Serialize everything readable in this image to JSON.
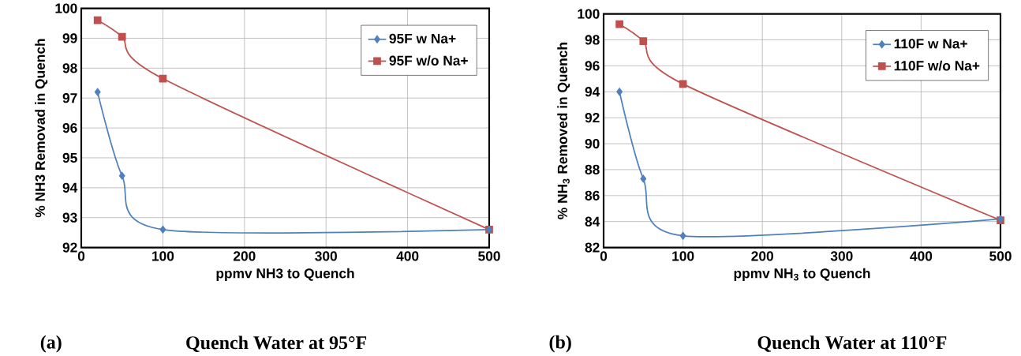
{
  "chart_data": [
    {
      "type": "line",
      "title": "Quench Water at 95°F",
      "annotations": [
        "(a)"
      ],
      "xlabel": "ppmv NH3 to Quench",
      "ylabel": "% NH3 Removad in Quench",
      "x": [
        20,
        50,
        100,
        500
      ],
      "series": [
        {
          "name": "95F w Na+",
          "color": "#4f81bd",
          "marker": "diamond",
          "values": [
            97.2,
            94.4,
            92.6,
            92.6
          ]
        },
        {
          "name": "95F w/o Na+",
          "color": "#c0504d",
          "marker": "square",
          "values": [
            99.6,
            99.05,
            97.65,
            92.6
          ]
        }
      ],
      "xlim": [
        0,
        500
      ],
      "xticks": [
        0,
        100,
        200,
        300,
        400,
        500
      ],
      "ylim": [
        92,
        100
      ],
      "yticks": [
        92,
        93,
        94,
        95,
        96,
        97,
        98,
        99,
        100
      ],
      "grid": true,
      "legend": "top right"
    },
    {
      "type": "line",
      "title": "Quench Water at 110°F",
      "annotations": [
        "(b)"
      ],
      "xlabel": "ppmv NH$_{3}$ to Quench",
      "ylabel": "% NH$_{3}$ Removed in Quench",
      "x": [
        20,
        50,
        100,
        500
      ],
      "series": [
        {
          "name": "110F w Na+",
          "color": "#4f81bd",
          "marker": "diamond",
          "values": [
            94.0,
            87.3,
            82.9,
            84.2
          ]
        },
        {
          "name": "110F w/o Na+",
          "color": "#c0504d",
          "marker": "square",
          "values": [
            99.2,
            97.9,
            94.6,
            84.1
          ]
        }
      ],
      "xlim": [
        0,
        500
      ],
      "xticks": [
        0,
        100,
        200,
        300,
        400,
        500
      ],
      "ylim": [
        82,
        100
      ],
      "yticks": [
        82,
        84,
        86,
        88,
        90,
        92,
        94,
        96,
        98,
        100
      ],
      "grid": true,
      "legend": "top right"
    }
  ]
}
